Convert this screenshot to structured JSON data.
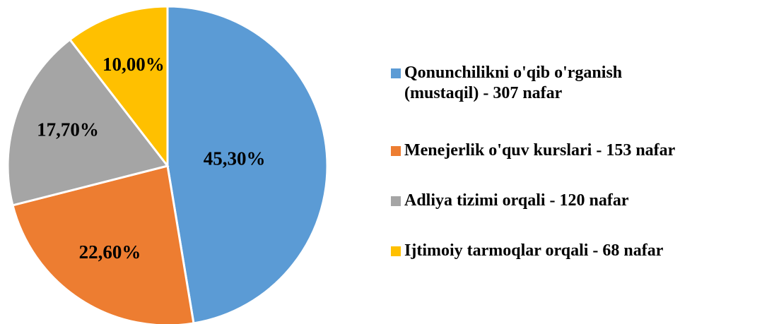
{
  "chart_data": {
    "type": "pie",
    "categories": [
      "Qonunchilikni o'qib o'rganish (mustaqil) - 307 nafar",
      "Menejerlik o'quv kurslari - 153 nafar",
      "Adliya tizimi orqali - 120 nafar",
      "Ijtimoiy tarmoqlar orqali - 68 nafar"
    ],
    "values": [
      45.3,
      22.6,
      17.7,
      10.0
    ],
    "value_labels": [
      "45,30%",
      "22,60%",
      "17,70%",
      "10,00%"
    ],
    "colors": [
      "#5b9bd5",
      "#ed7d31",
      "#a5a5a5",
      "#ffc000"
    ],
    "legend": "right"
  }
}
